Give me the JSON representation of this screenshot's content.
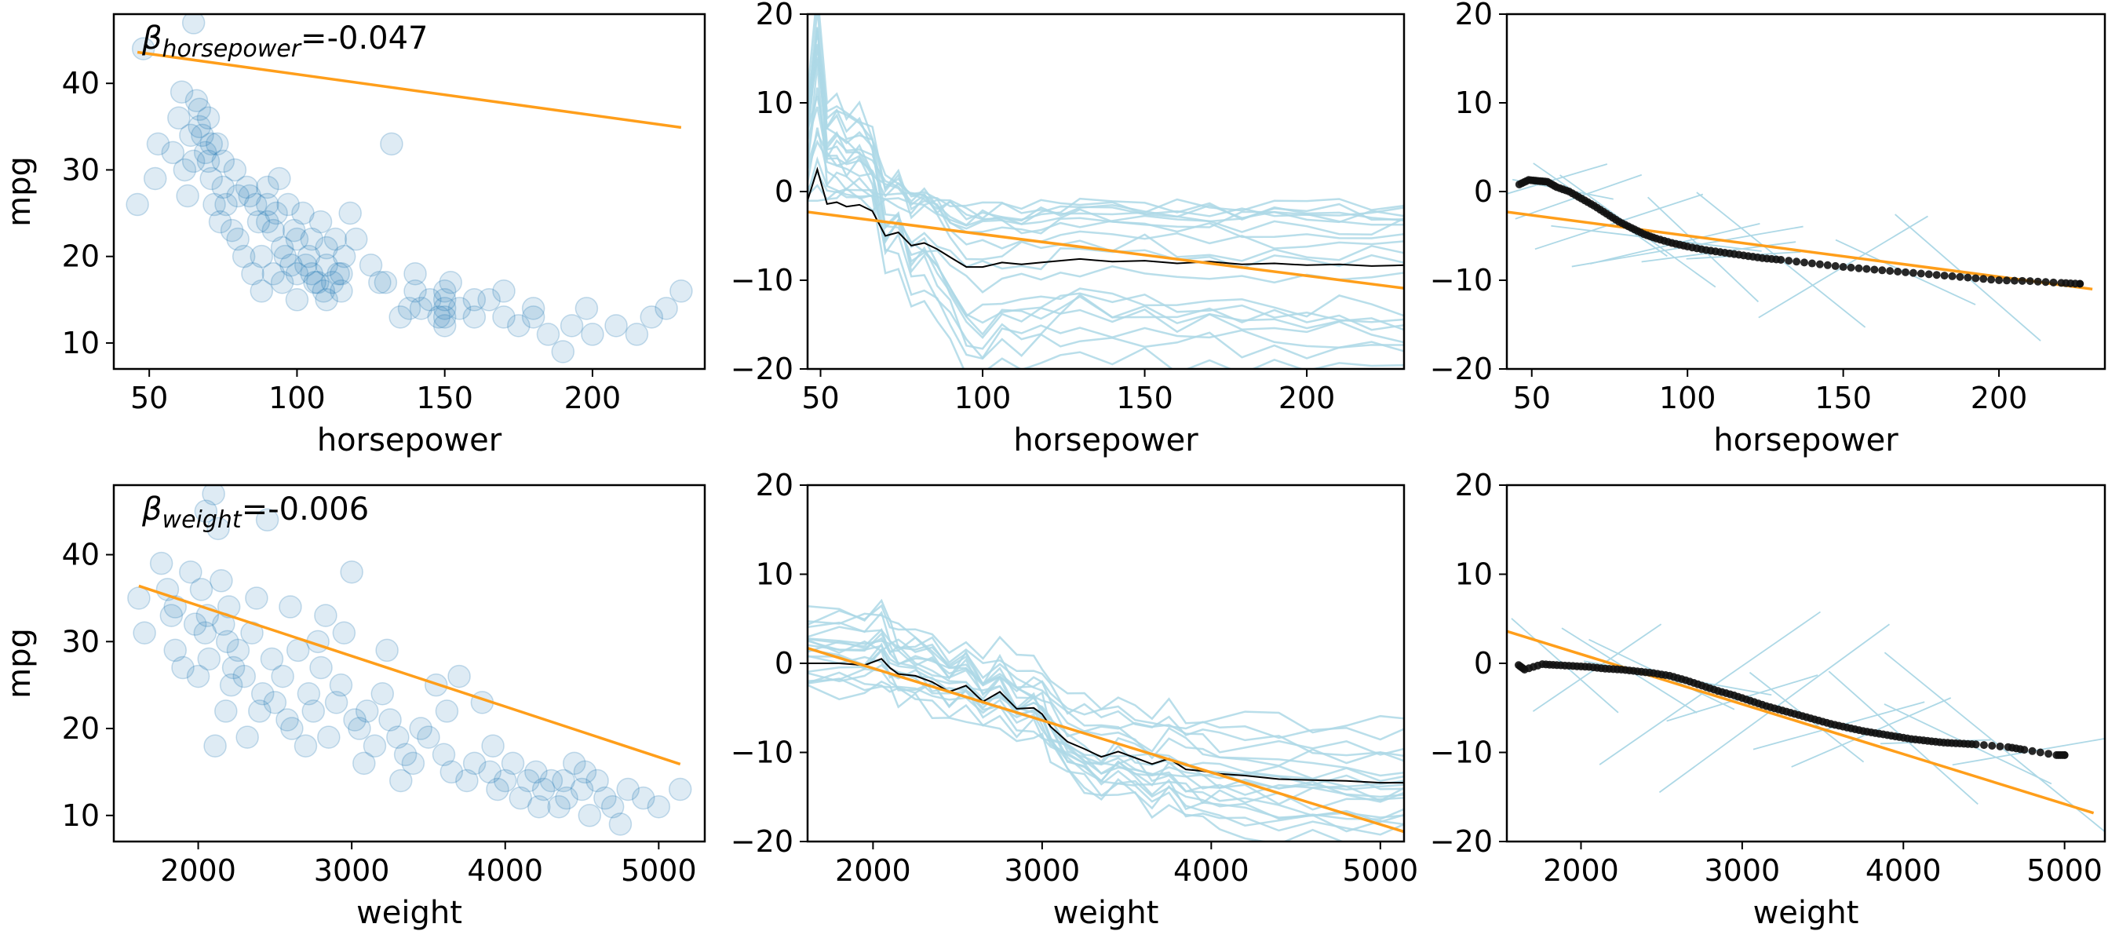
{
  "colors": {
    "scatter": "#1f77b4",
    "fit_line": "#ff9e1a",
    "ice_lines": "#add8e6",
    "pdp_line": "#000000",
    "deriv_points": "#111111"
  },
  "chart_data": [
    {
      "id": "hp-scatter",
      "type": "scatter",
      "xlabel": "horsepower",
      "ylabel": "mpg",
      "xlim": [
        38,
        238
      ],
      "ylim": [
        7,
        48
      ],
      "xticks": [
        50,
        100,
        150,
        200
      ],
      "yticks": [
        10,
        20,
        30,
        40
      ],
      "annotation": {
        "symbol": "β",
        "subscript": "horsepower",
        "text": "=-0.047"
      },
      "fit_line": {
        "x": [
          46,
          230
        ],
        "y": [
          43.6,
          34.9
        ]
      },
      "points": [
        [
          46,
          26
        ],
        [
          48,
          44
        ],
        [
          52,
          29
        ],
        [
          53,
          33
        ],
        [
          58,
          32
        ],
        [
          60,
          36
        ],
        [
          61,
          39
        ],
        [
          65,
          47
        ],
        [
          62,
          30
        ],
        [
          63,
          27
        ],
        [
          65,
          31
        ],
        [
          66,
          38
        ],
        [
          67,
          35
        ],
        [
          68,
          34
        ],
        [
          69,
          32
        ],
        [
          70,
          36
        ],
        [
          70,
          31
        ],
        [
          71,
          29
        ],
        [
          72,
          26
        ],
        [
          74,
          24
        ],
        [
          75,
          28
        ],
        [
          75,
          31
        ],
        [
          76,
          26
        ],
        [
          78,
          23
        ],
        [
          80,
          27
        ],
        [
          80,
          22
        ],
        [
          82,
          20
        ],
        [
          84,
          27
        ],
        [
          85,
          18
        ],
        [
          86,
          26
        ],
        [
          88,
          20
        ],
        [
          88,
          16
        ],
        [
          90,
          28
        ],
        [
          90,
          24
        ],
        [
          92,
          18
        ],
        [
          92,
          23
        ],
        [
          94,
          29
        ],
        [
          95,
          21
        ],
        [
          95,
          17
        ],
        [
          97,
          26
        ],
        [
          98,
          19
        ],
        [
          100,
          22
        ],
        [
          100,
          18
        ],
        [
          100,
          15
        ],
        [
          102,
          25
        ],
        [
          103,
          19
        ],
        [
          105,
          18
        ],
        [
          105,
          22
        ],
        [
          107,
          17
        ],
        [
          108,
          24
        ],
        [
          110,
          15
        ],
        [
          110,
          19
        ],
        [
          110,
          21
        ],
        [
          112,
          17
        ],
        [
          113,
          22
        ],
        [
          115,
          18
        ],
        [
          115,
          16
        ],
        [
          118,
          25
        ],
        [
          120,
          22
        ],
        [
          125,
          19
        ],
        [
          130,
          17
        ],
        [
          132,
          33
        ],
        [
          135,
          13
        ],
        [
          140,
          16
        ],
        [
          140,
          18
        ],
        [
          142,
          14
        ],
        [
          145,
          15
        ],
        [
          148,
          13
        ],
        [
          150,
          14
        ],
        [
          150,
          15
        ],
        [
          150,
          13
        ],
        [
          150,
          16
        ],
        [
          152,
          17
        ],
        [
          155,
          14
        ],
        [
          160,
          13
        ],
        [
          165,
          15
        ],
        [
          170,
          13
        ],
        [
          175,
          12
        ],
        [
          180,
          14
        ],
        [
          185,
          11
        ],
        [
          190,
          9
        ],
        [
          193,
          12
        ],
        [
          198,
          14
        ],
        [
          200,
          11
        ],
        [
          208,
          12
        ],
        [
          215,
          11
        ],
        [
          220,
          13
        ],
        [
          225,
          14
        ],
        [
          230,
          16
        ],
        [
          64,
          34
        ],
        [
          71,
          33
        ],
        [
          79,
          30
        ],
        [
          87,
          24
        ],
        [
          96,
          20
        ],
        [
          106,
          17
        ],
        [
          116,
          20
        ],
        [
          128,
          17
        ],
        [
          138,
          14
        ],
        [
          160,
          15
        ],
        [
          170,
          16
        ],
        [
          180,
          13
        ],
        [
          90,
          26
        ],
        [
          67,
          37
        ],
        [
          73,
          33
        ],
        [
          83,
          28
        ],
        [
          93,
          25
        ],
        [
          99,
          23
        ],
        [
          104,
          20
        ],
        [
          109,
          16
        ],
        [
          114,
          18
        ],
        [
          150,
          12
        ]
      ]
    },
    {
      "id": "hp-ice",
      "type": "line",
      "xlabel": "horsepower",
      "ylabel": "",
      "xlim": [
        46,
        230
      ],
      "ylim": [
        -20,
        20
      ],
      "xticks": [
        50,
        100,
        150,
        200
      ],
      "yticks": [
        -20,
        -10,
        0,
        10,
        20
      ],
      "fit_line": {
        "x": [
          46,
          230
        ],
        "y": [
          -2.3,
          -10.9
        ]
      },
      "pdp_line": {
        "x": [
          46,
          49,
          52,
          55,
          58,
          62,
          66,
          70,
          74,
          78,
          82,
          86,
          90,
          95,
          100,
          106,
          112,
          118,
          124,
          130,
          140,
          150,
          160,
          170,
          180,
          190,
          200,
          210,
          220,
          230
        ],
        "y": [
          -1,
          2.5,
          -1.4,
          -1.2,
          -1.7,
          -1.5,
          -2.2,
          -5,
          -4.6,
          -6.1,
          -5.8,
          -6.5,
          -7.4,
          -8.5,
          -8.5,
          -8,
          -8.2,
          -8,
          -7.8,
          -7.6,
          -7.9,
          -7.8,
          -8.1,
          -7.9,
          -8.2,
          -8.1,
          -8.3,
          -8.2,
          -8.4,
          -8.3
        ]
      },
      "ice_baselines": [
        -20,
        -18,
        -17,
        -16,
        -15,
        -14.5,
        -14,
        -13,
        -10,
        -8,
        -7,
        -6,
        -5,
        -4,
        -3.5,
        -3,
        -2.6,
        -2.2,
        -1.9,
        -1.6
      ],
      "ice_starts": [
        3,
        5,
        7,
        9,
        11,
        8,
        6,
        4,
        2,
        0,
        10,
        9,
        8,
        6,
        5,
        4,
        3,
        1,
        0,
        -1
      ]
    },
    {
      "id": "hp-deriv",
      "type": "scatter",
      "xlabel": "horsepower",
      "ylabel": "",
      "xlim": [
        42,
        234
      ],
      "ylim": [
        -20,
        20
      ],
      "xticks": [
        50,
        100,
        150,
        200
      ],
      "yticks": [
        -20,
        -10,
        0,
        10,
        20
      ],
      "fit_line": {
        "x": [
          42,
          230
        ],
        "y": [
          -2.3,
          -11
        ]
      },
      "curve": {
        "x": [
          46,
          49,
          52,
          55,
          58,
          62,
          66,
          70,
          74,
          78,
          82,
          86,
          90,
          95,
          100,
          106,
          112,
          118,
          124,
          130,
          140,
          150,
          160,
          170,
          180,
          190,
          200,
          210,
          220,
          226
        ],
        "y": [
          0.8,
          1.3,
          1.2,
          1.1,
          0.5,
          0,
          -0.8,
          -1.6,
          -2.5,
          -3.4,
          -4.1,
          -4.8,
          -5.3,
          -5.8,
          -6.2,
          -6.6,
          -6.9,
          -7.2,
          -7.5,
          -7.7,
          -8.1,
          -8.5,
          -8.8,
          -9.1,
          -9.4,
          -9.7,
          -10,
          -10.1,
          -10.3,
          -10.4
        ]
      },
      "tangent_x": [
        55,
        60,
        65,
        72,
        78,
        84,
        90,
        96,
        100,
        105,
        110,
        118,
        130,
        150,
        170,
        190
      ]
    },
    {
      "id": "wt-scatter",
      "type": "scatter",
      "xlabel": "weight",
      "ylabel": "mpg",
      "xlim": [
        1450,
        5300
      ],
      "ylim": [
        7,
        48
      ],
      "xticks": [
        2000,
        3000,
        4000,
        5000
      ],
      "yticks": [
        10,
        20,
        30,
        40
      ],
      "annotation": {
        "symbol": "β",
        "subscript": "weight",
        "text": "=-0.006"
      },
      "fit_line": {
        "x": [
          1613,
          5140
        ],
        "y": [
          36.4,
          15.9
        ]
      },
      "points": [
        [
          1613,
          35
        ],
        [
          1650,
          31
        ],
        [
          1760,
          39
        ],
        [
          1800,
          36
        ],
        [
          1825,
          33
        ],
        [
          1850,
          34
        ],
        [
          1850,
          29
        ],
        [
          1900,
          27
        ],
        [
          1950,
          38
        ],
        [
          1980,
          32
        ],
        [
          2000,
          26
        ],
        [
          2020,
          36
        ],
        [
          2045,
          31
        ],
        [
          2050,
          45
        ],
        [
          2070,
          28
        ],
        [
          2100,
          47
        ],
        [
          2110,
          18
        ],
        [
          2130,
          43
        ],
        [
          2150,
          37
        ],
        [
          2165,
          32
        ],
        [
          2190,
          30
        ],
        [
          2200,
          34
        ],
        [
          2215,
          25
        ],
        [
          2230,
          27
        ],
        [
          2260,
          29
        ],
        [
          2300,
          26
        ],
        [
          2320,
          19
        ],
        [
          2350,
          31
        ],
        [
          2400,
          22
        ],
        [
          2420,
          24
        ],
        [
          2450,
          44
        ],
        [
          2480,
          28
        ],
        [
          2500,
          23
        ],
        [
          2550,
          26
        ],
        [
          2600,
          34
        ],
        [
          2610,
          20
        ],
        [
          2650,
          29
        ],
        [
          2700,
          18
        ],
        [
          2720,
          24
        ],
        [
          2750,
          22
        ],
        [
          2800,
          27
        ],
        [
          2830,
          33
        ],
        [
          2850,
          19
        ],
        [
          2900,
          23
        ],
        [
          2930,
          25
        ],
        [
          2950,
          31
        ],
        [
          3000,
          38
        ],
        [
          3050,
          20
        ],
        [
          3080,
          16
        ],
        [
          3100,
          22
        ],
        [
          3150,
          18
        ],
        [
          3200,
          24
        ],
        [
          3230,
          29
        ],
        [
          3250,
          21
        ],
        [
          3300,
          19
        ],
        [
          3350,
          17
        ],
        [
          3400,
          16
        ],
        [
          3450,
          20
        ],
        [
          3500,
          19
        ],
        [
          3550,
          25
        ],
        [
          3600,
          17
        ],
        [
          3650,
          15
        ],
        [
          3700,
          26
        ],
        [
          3750,
          14
        ],
        [
          3800,
          16
        ],
        [
          3850,
          23
        ],
        [
          3900,
          15
        ],
        [
          3950,
          13
        ],
        [
          4000,
          14
        ],
        [
          4050,
          16
        ],
        [
          4100,
          12
        ],
        [
          4150,
          14
        ],
        [
          4200,
          15
        ],
        [
          4250,
          13
        ],
        [
          4300,
          14
        ],
        [
          4350,
          11
        ],
        [
          4400,
          12
        ],
        [
          4450,
          16
        ],
        [
          4500,
          13
        ],
        [
          4550,
          10
        ],
        [
          4600,
          14
        ],
        [
          4650,
          12
        ],
        [
          4700,
          11
        ],
        [
          4750,
          9
        ],
        [
          4800,
          13
        ],
        [
          4900,
          12
        ],
        [
          5000,
          11
        ],
        [
          5140,
          13
        ],
        [
          2060,
          33
        ],
        [
          2180,
          22
        ],
        [
          2380,
          35
        ],
        [
          2580,
          21
        ],
        [
          2780,
          30
        ],
        [
          3020,
          21
        ],
        [
          3320,
          14
        ],
        [
          3620,
          22
        ],
        [
          3920,
          18
        ],
        [
          4220,
          11
        ],
        [
          4380,
          14
        ],
        [
          4520,
          15
        ]
      ]
    },
    {
      "id": "wt-ice",
      "type": "line",
      "xlabel": "weight",
      "ylabel": "",
      "xlim": [
        1613,
        5140
      ],
      "ylim": [
        -20,
        20
      ],
      "xticks": [
        2000,
        3000,
        4000,
        5000
      ],
      "yticks": [
        -20,
        -10,
        0,
        10,
        20
      ],
      "fit_line": {
        "x": [
          1613,
          5140
        ],
        "y": [
          1.7,
          -18.9
        ]
      },
      "pdp_line": {
        "x": [
          1613,
          1800,
          1950,
          2050,
          2100,
          2150,
          2250,
          2350,
          2450,
          2550,
          2650,
          2750,
          2850,
          2950,
          3000,
          3050,
          3150,
          3250,
          3350,
          3450,
          3550,
          3650,
          3750,
          3850,
          3950,
          4050,
          4200,
          4400,
          4600,
          4800,
          5000,
          5140
        ],
        "y": [
          0,
          0,
          -0.2,
          0.5,
          -0.5,
          -1.2,
          -1.4,
          -2.1,
          -3.2,
          -2.5,
          -4.3,
          -3.2,
          -5.1,
          -5,
          -5.7,
          -7.1,
          -8.8,
          -9.6,
          -10.5,
          -9.9,
          -10.6,
          -11.3,
          -10.7,
          -11.9,
          -12.1,
          -12.4,
          -12.6,
          -13,
          -13.1,
          -13.2,
          -13.4,
          -13.4
        ]
      },
      "ice_baselines": [
        -7,
        -9.5,
        -11,
        -12,
        -13,
        -14,
        -15,
        -16,
        -17,
        -18,
        -19,
        -20,
        -10,
        -8,
        -13.5,
        -14.5,
        -15.5,
        -16.5,
        -18.5,
        -12.5
      ],
      "ice_starts": [
        5,
        4,
        3,
        2,
        1,
        0,
        -1,
        -2,
        -3,
        6,
        5,
        3,
        2,
        1,
        0,
        -1,
        4,
        2,
        0,
        -2
      ]
    },
    {
      "id": "wt-deriv",
      "type": "scatter",
      "xlabel": "weight",
      "ylabel": "",
      "xlim": [
        1540,
        5250
      ],
      "ylim": [
        -20,
        20
      ],
      "xticks": [
        2000,
        3000,
        4000,
        5000
      ],
      "yticks": [
        -20,
        -10,
        0,
        10,
        20
      ],
      "fit_line": {
        "x": [
          1540,
          5180
        ],
        "y": [
          3.6,
          -16.8
        ]
      },
      "curve": {
        "x": [
          1613,
          1650,
          1760,
          1850,
          1950,
          2050,
          2150,
          2250,
          2350,
          2450,
          2550,
          2650,
          2750,
          2850,
          2950,
          3050,
          3150,
          3250,
          3350,
          3450,
          3550,
          3650,
          3750,
          3850,
          3950,
          4050,
          4150,
          4250,
          4350,
          4450,
          4650,
          4750,
          4950,
          5000
        ],
        "y": [
          -0.2,
          -0.7,
          -0.1,
          -0.2,
          -0.3,
          -0.4,
          -0.6,
          -0.7,
          -0.9,
          -1.1,
          -1.4,
          -1.9,
          -2.5,
          -3.1,
          -3.6,
          -4.2,
          -4.8,
          -5.3,
          -5.8,
          -6.3,
          -6.8,
          -7.2,
          -7.6,
          -7.9,
          -8.2,
          -8.5,
          -8.7,
          -8.9,
          -9,
          -9.1,
          -9.4,
          -9.7,
          -10.3,
          -10.3
        ]
      },
      "tangent_x": [
        1900,
        2100,
        2300,
        2500,
        2600,
        2800,
        3000,
        3200,
        3400,
        3600,
        3800,
        4000,
        4200,
        4400,
        4600,
        4800
      ]
    }
  ]
}
